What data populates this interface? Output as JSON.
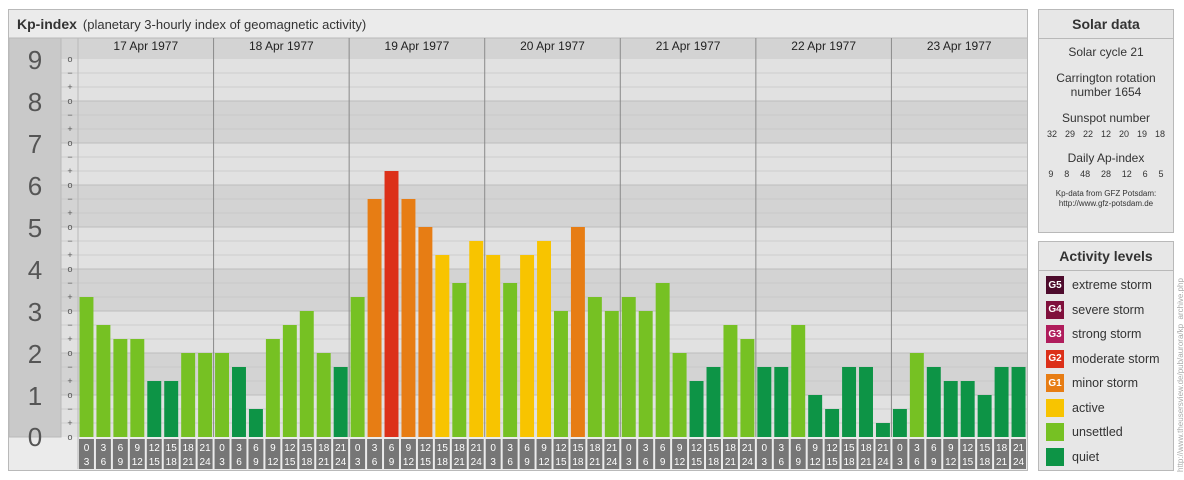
{
  "header": {
    "title": "Kp-index",
    "subtitle": "(planetary 3-hourly index of geomagnetic activity)"
  },
  "chart_data": {
    "type": "bar",
    "y_range": [
      0,
      9
    ],
    "y_major_labels": [
      "0",
      "1",
      "2",
      "3",
      "4",
      "5",
      "6",
      "7",
      "8",
      "9"
    ],
    "y_minor_labels": [
      "o",
      "+",
      "−",
      "o"
    ],
    "days": [
      "17 Apr 1977",
      "18 Apr 1977",
      "19 Apr 1977",
      "20 Apr 1977",
      "21 Apr 1977",
      "22 Apr 1977",
      "23 Apr 1977"
    ],
    "hour_labels_top": [
      "0",
      "3",
      "6",
      "9",
      "12",
      "15",
      "18",
      "21"
    ],
    "hour_labels_bottom": [
      "3",
      "6",
      "9",
      "12",
      "15",
      "18",
      "21",
      "24"
    ],
    "values": [
      3.333,
      2.667,
      2.333,
      2.333,
      1.333,
      1.333,
      2.0,
      2.0,
      2.0,
      1.667,
      0.667,
      2.333,
      2.667,
      3.0,
      2.0,
      1.667,
      3.333,
      5.667,
      6.333,
      5.667,
      5.0,
      4.333,
      3.667,
      4.667,
      4.333,
      3.667,
      4.333,
      4.667,
      3.0,
      5.0,
      3.333,
      3.0,
      3.333,
      3.0,
      3.667,
      2.0,
      1.333,
      1.667,
      2.667,
      2.333,
      1.667,
      1.667,
      2.667,
      1.0,
      0.667,
      1.667,
      1.667,
      0.333,
      0.667,
      2.0,
      1.667,
      1.333,
      1.333,
      1.0,
      1.667,
      1.667
    ],
    "colors": {
      "quiet": "#0d9446",
      "unsettled": "#76c123",
      "active": "#f8c400",
      "G1": "#e77d14",
      "G2": "#dc3019",
      "G3": "#b01d5c",
      "G4": "#80103c",
      "G5": "#4d0b2c",
      "hour_cell": "#767676",
      "panel": "#ebebeb",
      "band_dark": "#d3d3d3",
      "band_light": "#e1e1e1",
      "left_strip": "#c9c9c9"
    },
    "grid": true,
    "legend": "right"
  },
  "solar": {
    "title": "Solar data",
    "cycle": "Solar cycle 21",
    "carrington_line1": "Carrington rotation",
    "carrington_line2": "number 1654",
    "sunspot_title": "Sunspot number",
    "sunspots": [
      "32",
      "29",
      "22",
      "12",
      "20",
      "19",
      "18"
    ],
    "ap_title": "Daily Ap-index",
    "ap": [
      "9",
      "8",
      "48",
      "28",
      "12",
      "6",
      "5"
    ],
    "source_line1": "Kp-data from GFZ Potsdam:",
    "source_line2": "http://www.gfz-potsdam.de"
  },
  "levels": {
    "title": "Activity levels",
    "items": [
      {
        "badge": "G5",
        "label": "extreme storm",
        "color": "#4d0b2c"
      },
      {
        "badge": "G4",
        "label": "severe storm",
        "color": "#80103c"
      },
      {
        "badge": "G3",
        "label": "strong storm",
        "color": "#b01d5c"
      },
      {
        "badge": "G2",
        "label": "moderate storm",
        "color": "#dc3019"
      },
      {
        "badge": "G1",
        "label": "minor storm",
        "color": "#e77d14"
      },
      {
        "badge": "",
        "label": "active",
        "color": "#f8c400"
      },
      {
        "badge": "",
        "label": "unsettled",
        "color": "#76c123"
      },
      {
        "badge": "",
        "label": "quiet",
        "color": "#0d9446"
      }
    ]
  },
  "credit": "http://www.theusersview.de/pub/aurora/kp_archive.php"
}
